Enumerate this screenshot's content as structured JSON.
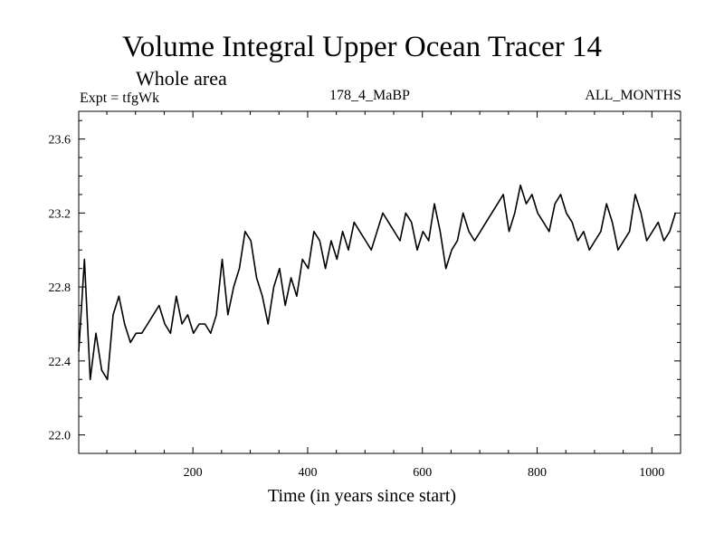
{
  "header": {
    "title": "Volume Integral Upper Ocean Tracer 14",
    "subtitle": "Whole area",
    "experiment": "Expt = tfgWk",
    "run": "178_4_MaBP",
    "months": "ALL_MONTHS"
  },
  "chart_data": {
    "type": "line",
    "title": "Volume Integral Upper Ocean Tracer 14",
    "subtitle": "Whole area",
    "xlabel": "Time (in years since start)",
    "ylabel": "",
    "xlim": [
      1,
      1050
    ],
    "ylim": [
      21.9,
      23.75
    ],
    "x_ticks": [
      200,
      400,
      600,
      800,
      1000
    ],
    "y_ticks": [
      22.0,
      22.4,
      22.8,
      23.2,
      23.6
    ],
    "x_tick_labels": [
      "200",
      "400",
      "600",
      "800",
      "1000"
    ],
    "y_tick_labels": [
      "22.0",
      "22.4",
      "22.8",
      "23.2",
      "23.6"
    ],
    "grid": false,
    "series": [
      {
        "name": "Volume Integral Upper Ocean Tracer 14",
        "sample_step_years": 10,
        "x_start": 1,
        "values": [
          22.45,
          22.95,
          22.3,
          22.55,
          22.35,
          22.3,
          22.65,
          22.75,
          22.6,
          22.5,
          22.55,
          22.55,
          22.6,
          22.65,
          22.7,
          22.6,
          22.55,
          22.75,
          22.6,
          22.65,
          22.55,
          22.6,
          22.6,
          22.55,
          22.65,
          22.95,
          22.65,
          22.8,
          22.9,
          23.1,
          23.05,
          22.85,
          22.75,
          22.6,
          22.8,
          22.9,
          22.7,
          22.85,
          22.75,
          22.95,
          22.9,
          23.1,
          23.05,
          22.9,
          23.05,
          22.95,
          23.1,
          23.0,
          23.15,
          23.1,
          23.05,
          23.0,
          23.1,
          23.2,
          23.15,
          23.1,
          23.05,
          23.2,
          23.15,
          23.0,
          23.1,
          23.05,
          23.25,
          23.1,
          22.9,
          23.0,
          23.05,
          23.2,
          23.1,
          23.05,
          23.1,
          23.15,
          23.2,
          23.25,
          23.3,
          23.1,
          23.2,
          23.35,
          23.25,
          23.3,
          23.2,
          23.15,
          23.1,
          23.25,
          23.3,
          23.2,
          23.15,
          23.05,
          23.1,
          23.0,
          23.05,
          23.1,
          23.25,
          23.15,
          23.0,
          23.05,
          23.1,
          23.3,
          23.2,
          23.05,
          23.1,
          23.15,
          23.05,
          23.1,
          23.2
        ]
      }
    ]
  }
}
